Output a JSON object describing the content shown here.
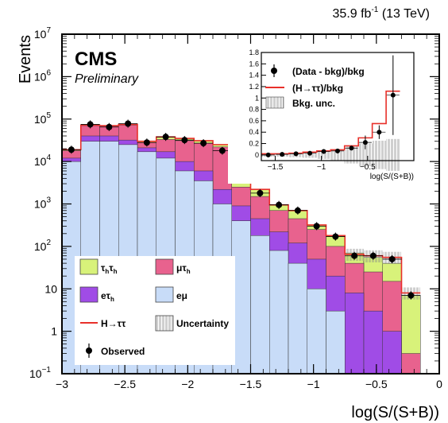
{
  "chart_data": [
    {
      "type": "histogram",
      "lumi": "35.9 fb",
      "lumi_sup": "-1",
      "energy": "(13 TeV)",
      "experiment": "CMS",
      "status": "Preliminary",
      "xlabel": "log(S/(S+B))",
      "ylabel": "Events",
      "xlim": [
        -3,
        0
      ],
      "ylim": [
        0.1,
        10000000
      ],
      "yscale": "log",
      "bin_edges": [
        -3.0,
        -2.85,
        -2.7,
        -2.55,
        -2.4,
        -2.25,
        -2.1,
        -1.95,
        -1.8,
        -1.65,
        -1.5,
        -1.35,
        -1.2,
        -1.05,
        -0.9,
        -0.75,
        -0.6,
        -0.45,
        -0.3,
        -0.15
      ],
      "xticks": [
        {
          "v": -3,
          "l": "−3"
        },
        {
          "v": -2.5,
          "l": "−2.5"
        },
        {
          "v": -2,
          "l": "−2"
        },
        {
          "v": -1.5,
          "l": "−1.5"
        },
        {
          "v": -1,
          "l": "−1"
        },
        {
          "v": -0.5,
          "l": "−0.5"
        },
        {
          "v": 0,
          "l": "0"
        }
      ],
      "yticks": [
        {
          "v": 0.1,
          "b": "10",
          "e": "−1"
        },
        {
          "v": 1,
          "b": "1",
          "e": ""
        },
        {
          "v": 10,
          "b": "10",
          "e": ""
        },
        {
          "v": 100,
          "b": "10",
          "e": "2"
        },
        {
          "v": 1000,
          "b": "10",
          "e": "3"
        },
        {
          "v": 10000,
          "b": "10",
          "e": "4"
        },
        {
          "v": 100000,
          "b": "10",
          "e": "5"
        },
        {
          "v": 1000000,
          "b": "10",
          "e": "6"
        },
        {
          "v": 10000000,
          "b": "10",
          "e": "7"
        }
      ],
      "stack": [
        {
          "key": "emu",
          "color": "#c8dcf8",
          "values": [
            10000,
            30000,
            30000,
            25000,
            17000,
            12000,
            6000,
            3500,
            1000,
            400,
            180,
            80,
            40,
            10,
            3,
            0.08,
            0.08,
            0.08,
            0.08
          ]
        },
        {
          "key": "etauh",
          "color": "#a04ce6",
          "values": [
            12000,
            40000,
            40000,
            32000,
            21000,
            17000,
            10000,
            6000,
            2200,
            900,
            450,
            220,
            120,
            50,
            20,
            8,
            3,
            1,
            0.08
          ]
        },
        {
          "key": "mutauh",
          "color": "#e8628e",
          "values": [
            18000,
            70000,
            68000,
            72000,
            28000,
            33000,
            31000,
            27000,
            22000,
            2500,
            1500,
            700,
            450,
            250,
            100,
            40,
            25,
            15,
            0.3
          ]
        },
        {
          "key": "tauhtauh",
          "color": "#d8f27a",
          "values": [
            19000,
            72000,
            70000,
            75000,
            30000,
            38000,
            35000,
            31000,
            25000,
            4000,
            2200,
            950,
            700,
            320,
            180,
            70,
            55,
            40,
            7
          ]
        }
      ],
      "signal_total": [
        19000,
        72000,
        70000,
        75000,
        30000,
        38000,
        35000,
        31000,
        25000,
        4000,
        2200,
        950,
        700,
        320,
        180,
        65,
        60,
        55,
        8
      ],
      "observed": [
        {
          "x": -2.925,
          "y": 19000
        },
        {
          "x": -2.775,
          "y": 75000
        },
        {
          "x": -2.625,
          "y": 65000
        },
        {
          "x": -2.475,
          "y": 78000
        },
        {
          "x": -2.325,
          "y": 28000
        },
        {
          "x": -2.175,
          "y": 38000
        },
        {
          "x": -2.025,
          "y": 32000
        },
        {
          "x": -1.875,
          "y": 27000
        },
        {
          "x": -1.725,
          "y": 18000
        },
        {
          "x": -1.575,
          "y": 4000
        },
        {
          "x": -1.425,
          "y": 1800
        },
        {
          "x": -1.275,
          "y": 950
        },
        {
          "x": -1.125,
          "y": 700
        },
        {
          "x": -0.975,
          "y": 300
        },
        {
          "x": -0.825,
          "y": 170
        },
        {
          "x": -0.675,
          "y": 60
        },
        {
          "x": -0.525,
          "y": 60
        },
        {
          "x": -0.375,
          "y": 50
        },
        {
          "x": -0.225,
          "y": 7
        }
      ],
      "legend": {
        "tt": "τ",
        "tt_sub1": "h",
        "tt2": "τ",
        "tt_sub2": "h",
        "mt": "μτ",
        "mt_sub": "h",
        "et": "eτ",
        "et_sub": "h",
        "em": "eμ",
        "htt": "H→ττ",
        "unc": "Uncertainty",
        "obs": "Observed"
      }
    },
    {
      "type": "inset",
      "xlabel": "log(S/(S+B))",
      "xlim": [
        -1.65,
        0
      ],
      "ylim": [
        -0.1,
        1.8
      ],
      "xticks": [
        {
          "v": -1.5,
          "l": "−1.5"
        },
        {
          "v": -1,
          "l": "−1"
        },
        {
          "v": -0.5,
          "l": "−0.5"
        }
      ],
      "yticks": [
        {
          "v": 0,
          "l": "0"
        },
        {
          "v": 0.2,
          "l": "0.2"
        },
        {
          "v": 0.4,
          "l": "0.4"
        },
        {
          "v": 0.6,
          "l": "0.6"
        },
        {
          "v": 0.8,
          "l": "0.8"
        },
        {
          "v": 1.0,
          "l": "1"
        },
        {
          "v": 1.2,
          "l": "1.2"
        },
        {
          "v": 1.4,
          "l": "1.4"
        },
        {
          "v": 1.6,
          "l": "1.6"
        },
        {
          "v": 1.8,
          "l": "1.8"
        }
      ],
      "points": [
        {
          "x": -1.575,
          "y": 0.0
        },
        {
          "x": -1.425,
          "y": 0.01
        },
        {
          "x": -1.275,
          "y": 0.02
        },
        {
          "x": -1.125,
          "y": 0.03
        },
        {
          "x": -0.975,
          "y": 0.06
        },
        {
          "x": -0.825,
          "y": 0.07
        },
        {
          "x": -0.675,
          "y": 0.12
        },
        {
          "x": -0.525,
          "y": 0.22
        },
        {
          "x": -0.375,
          "y": 0.4
        },
        {
          "x": -0.225,
          "y": 1.05
        }
      ],
      "signal_ratio": [
        0.02,
        0.02,
        0.03,
        0.05,
        0.07,
        0.09,
        0.16,
        0.3,
        0.55,
        1.12
      ],
      "legend": {
        "data": "(Data - bkg)/bkg",
        "sig": "(H→ττ)/bkg",
        "unc": "Bkg. unc."
      }
    }
  ]
}
